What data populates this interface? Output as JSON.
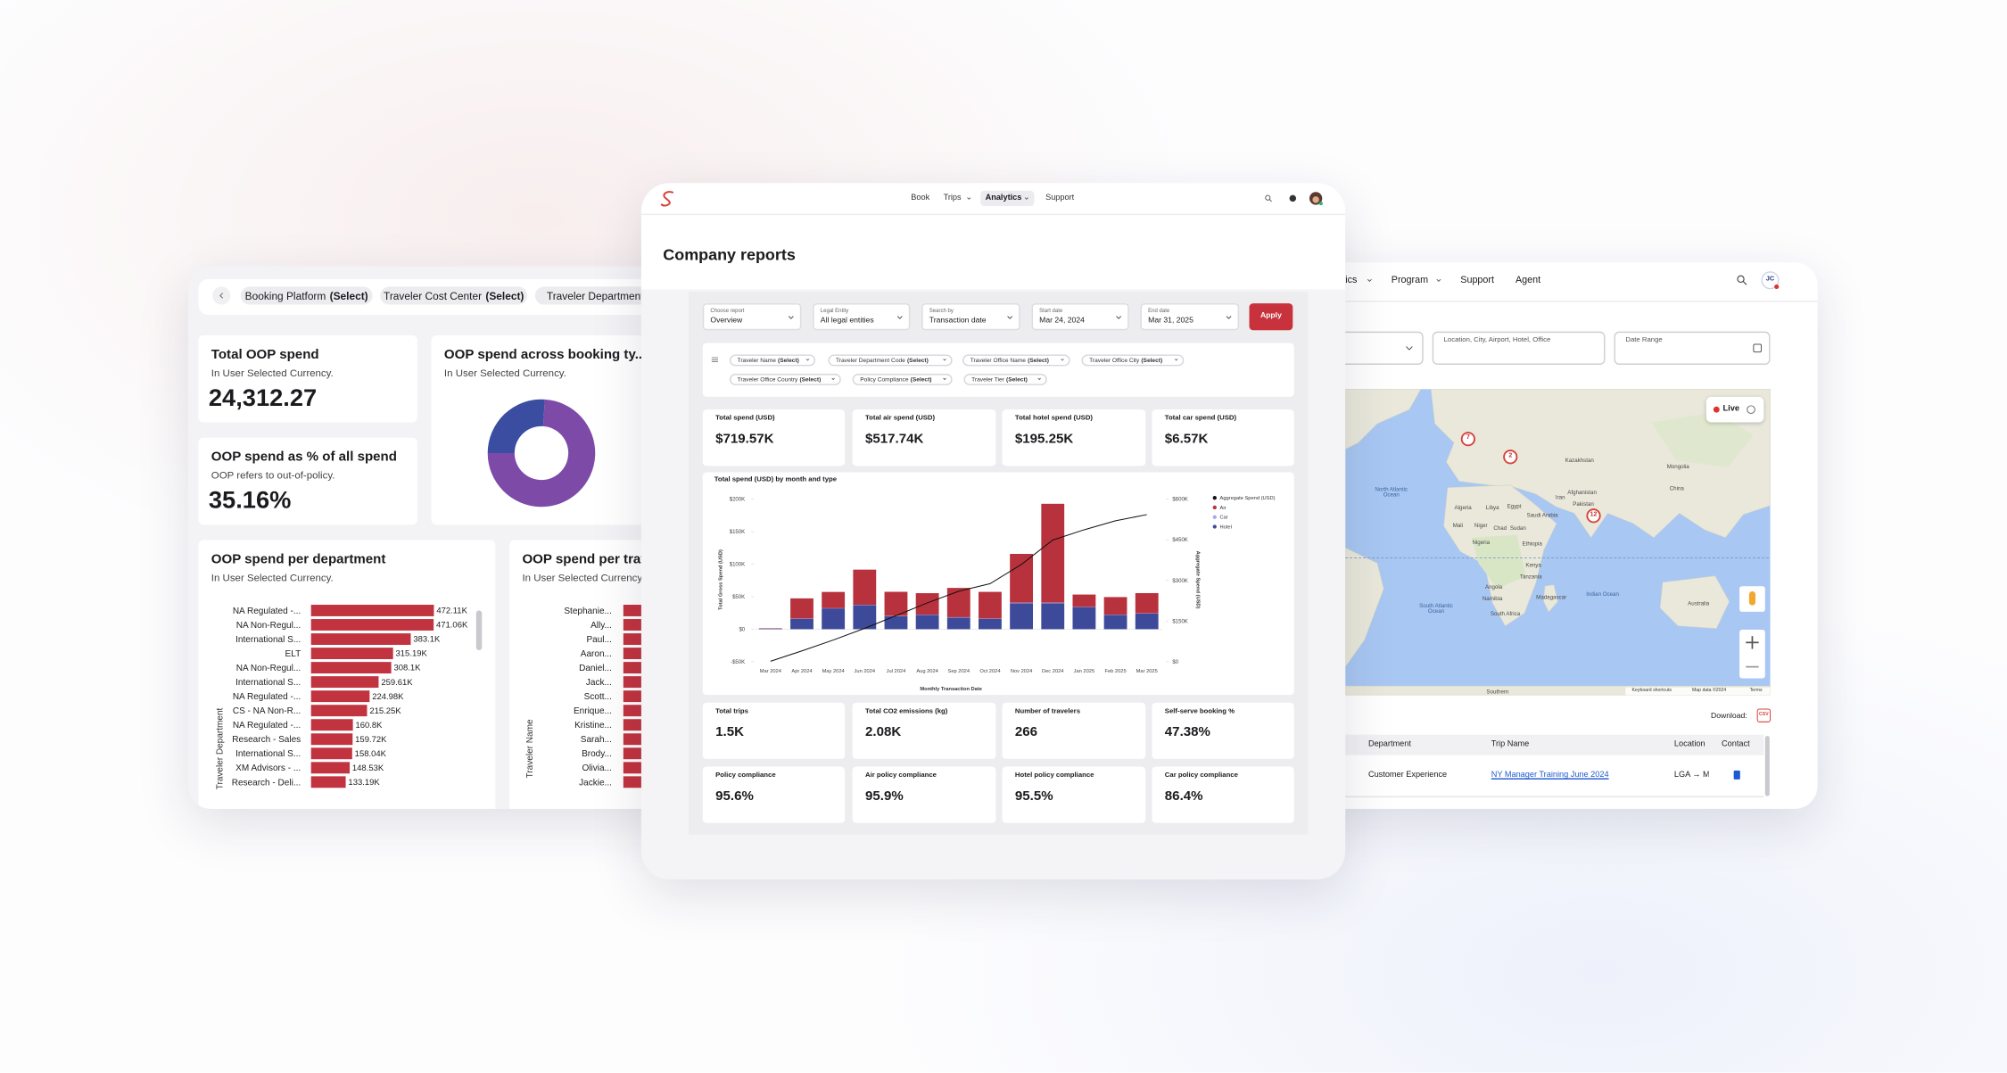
{
  "left": {
    "filters": [
      {
        "name": "Booking Platform",
        "select": "(Select)"
      },
      {
        "name": "Traveler Cost Center",
        "select": "(Select)"
      },
      {
        "name": "Traveler Department",
        "select": "(Select)"
      }
    ],
    "total_oop": {
      "title": "Total OOP spend",
      "subtitle": "In User Selected Currency.",
      "value": "24,312.27"
    },
    "oop_share": {
      "title": "OOP spend as % of all spend",
      "subtitle": "OOP refers to out-of-policy.",
      "value": "35.16%"
    },
    "booking_type": {
      "title": "OOP spend across booking ty...",
      "subtitle": "In User Selected Currency.",
      "chart": {
        "type": "pie",
        "values": [
          26,
          74
        ],
        "colors": [
          "#3b4da0",
          "#7d4aa8"
        ]
      }
    },
    "department": {
      "title": "OOP spend per department",
      "subtitle": "In User Selected Currency.",
      "chart": {
        "type": "bar",
        "orientation": "horizontal",
        "axis_label": "Traveler Department",
        "color": "#c23340",
        "categories": [
          "NA Regulated -...",
          "NA Non-Regul...",
          "International S...",
          "ELT",
          "NA Non-Regul...",
          "International S...",
          "NA Regulated -...",
          "CS - NA Non-R...",
          "NA Regulated -...",
          "Research - Sales",
          "International S...",
          "XM Advisors - ...",
          "Research - Deli..."
        ],
        "values": [
          472.11,
          471.06,
          383.1,
          315.19,
          308.1,
          259.61,
          224.98,
          215.25,
          160.8,
          159.72,
          158.04,
          148.53,
          133.19
        ],
        "value_labels": [
          "472.11K",
          "471.06K",
          "383.1K",
          "315.19K",
          "308.1K",
          "259.61K",
          "224.98K",
          "215.25K",
          "160.8K",
          "159.72K",
          "158.04K",
          "148.53K",
          "133.19K"
        ]
      }
    },
    "traveler": {
      "title": "OOP spend per traveler",
      "subtitle": "In User Selected Currency.",
      "chart": {
        "type": "bar",
        "orientation": "horizontal",
        "axis_label": "Traveler Name",
        "color": "#c23340",
        "categories": [
          "Stephanie...",
          "Ally...",
          "Paul...",
          "Aaron...",
          "Daniel...",
          "Jack...",
          "Scott...",
          "Enrique...",
          "Kristine...",
          "Sarah...",
          "Brody...",
          "Olivia...",
          "Jackie..."
        ],
        "values": [
          60,
          56,
          54,
          52,
          50,
          48,
          47,
          45,
          43,
          42,
          40,
          39,
          38
        ]
      }
    }
  },
  "center": {
    "nav": [
      "Book",
      "Trips",
      "Analytics",
      "Support"
    ],
    "title": "Company reports",
    "controls": [
      {
        "label": "Choose report",
        "value": "Overview"
      },
      {
        "label": "Legal Entity",
        "value": "All legal entities"
      },
      {
        "label": "Search by",
        "value": "Transaction date"
      },
      {
        "label": "Start date",
        "value": "Mar 24, 2024"
      },
      {
        "label": "End date",
        "value": "Mar 31, 2025"
      }
    ],
    "apply": "Apply",
    "chips": [
      {
        "name": "Traveler Name",
        "select": "(Select)"
      },
      {
        "name": "Traveler Department Code",
        "select": "(Select)"
      },
      {
        "name": "Traveler Office Name",
        "select": "(Select)"
      },
      {
        "name": "Traveler Office City",
        "select": "(Select)"
      },
      {
        "name": "Traveler Office Country",
        "select": "(Select)"
      },
      {
        "name": "Policy Compliance",
        "select": "(Select)"
      },
      {
        "name": "Traveler Tier",
        "select": "(Select)"
      }
    ],
    "kpis_top": [
      {
        "label": "Total spend (USD)",
        "value": "$719.57K"
      },
      {
        "label": "Total air spend (USD)",
        "value": "$517.74K"
      },
      {
        "label": "Total hotel spend (USD)",
        "value": "$195.25K"
      },
      {
        "label": "Total car spend (USD)",
        "value": "$6.57K"
      }
    ],
    "kpis_bottom": [
      {
        "label": "Total trips",
        "value": "1.5K"
      },
      {
        "label": "Total CO2 emissions (kg)",
        "value": "2.08K"
      },
      {
        "label": "Number of travelers",
        "value": "266"
      },
      {
        "label": "Self-serve booking %",
        "value": "47.38%"
      },
      {
        "label": "Policy compliance",
        "value": "95.6%"
      },
      {
        "label": "Air policy compliance",
        "value": "95.9%"
      },
      {
        "label": "Hotel policy compliance",
        "value": "95.5%"
      },
      {
        "label": "Car policy compliance",
        "value": "86.4%"
      }
    ],
    "chart": {
      "type": "bar",
      "stacked": true,
      "grid": false,
      "title": "Total spend (USD) by month and type",
      "x_label": "Monthly Transaction Date",
      "y_label": "Total Gross Spend (USD)",
      "y2_label": "Aggregate Spend (USD)",
      "categories": [
        "Mar 2024",
        "Apr 2024",
        "May 2024",
        "Jun 2024",
        "Jul 2024",
        "Aug 2024",
        "Sep 2024",
        "Oct 2024",
        "Nov 2024",
        "Dec 2024",
        "Jan 2025",
        "Feb 2025",
        "Mar 2025"
      ],
      "series": [
        {
          "name": "Aggregate Spend (USD)",
          "type": "line",
          "axis": "y2",
          "color": "#111111",
          "values": [
            1500,
            40000,
            80000,
            123000,
            170000,
            217000,
            260000,
            288000,
            359000,
            449000,
            487000,
            520000,
            543000
          ]
        },
        {
          "name": "Air",
          "color": "#b8323d",
          "values": [
            500,
            31000,
            25000,
            54000,
            37000,
            33000,
            45000,
            41000,
            75000,
            152000,
            19000,
            27000,
            31000
          ]
        },
        {
          "name": "Car",
          "color": "#a9a6e8",
          "values": [
            0,
            400,
            300,
            600,
            500,
            400,
            500,
            400,
            800,
            900,
            300,
            400,
            500
          ]
        },
        {
          "name": "Hotel",
          "color": "#3d4a9a",
          "values": [
            1000,
            16000,
            32000,
            37000,
            20000,
            22000,
            18000,
            16000,
            40000,
            40000,
            34000,
            22000,
            24000
          ]
        }
      ],
      "ylim": [
        -50000,
        200000
      ],
      "yticks": [
        {
          "value": -50000,
          "label": "-$50K"
        },
        {
          "value": 0,
          "label": "$0"
        },
        {
          "value": 50000,
          "label": "$50K"
        },
        {
          "value": 100000,
          "label": "$100K"
        },
        {
          "value": 150000,
          "label": "$150K"
        },
        {
          "value": 200000,
          "label": "$200K"
        }
      ],
      "y2lim": [
        0,
        600000
      ],
      "y2ticks": [
        {
          "value": 0,
          "label": "$0"
        },
        {
          "value": 150000,
          "label": "$150K"
        },
        {
          "value": 300000,
          "label": "$300K"
        },
        {
          "value": 450000,
          "label": "$450K"
        },
        {
          "value": 600000,
          "label": "$600K"
        }
      ]
    }
  },
  "right": {
    "nav": [
      "tics",
      "Program",
      "Support",
      "Agent"
    ],
    "avatar": "JC",
    "search": [
      "Location, City, Airport, Hotel, Office",
      "Date Range"
    ],
    "map": {
      "live": "Live",
      "labels": [
        "North Atlantic Ocean",
        "South Atlantic Ocean",
        "Indian Ocean",
        "Kazakhstan",
        "Mongolia",
        "China",
        "Algeria",
        "Libya",
        "Egypt",
        "Mali",
        "Niger",
        "Chad",
        "Sudan",
        "Saudi Arabia",
        "Iran",
        "Afghanistan",
        "Pakistan",
        "Nigeria",
        "Ethiopia",
        "Kenya",
        "Tanzania",
        "Angola",
        "Namibia",
        "Madagascar",
        "South Africa",
        "Australia",
        "Southern"
      ],
      "clusters": [
        "7",
        "2",
        "12"
      ],
      "attribution": [
        "Keyboard shortcuts",
        "Map data ©2024",
        "Terms"
      ]
    },
    "download": "Download:",
    "csv": "CSV",
    "table": {
      "headers": [
        "Department",
        "Trip Name",
        "Location",
        "Contact"
      ],
      "rows": [
        [
          "Customer Experience",
          "NY Manager Training June 2024",
          "LGA → MC"
        ]
      ]
    }
  }
}
